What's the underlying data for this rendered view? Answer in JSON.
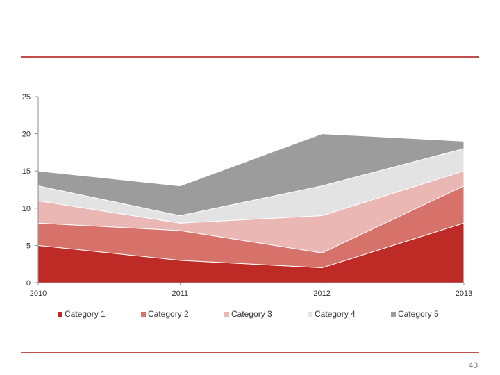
{
  "colors": {
    "rule": "#c0504d",
    "axis": "#8c8c8c",
    "series": [
      "#be2a26",
      "#d7726b",
      "#ebb7b5",
      "#e3e3e3",
      "#9c9c9c"
    ],
    "outline": "#ffffff"
  },
  "page_number": "40",
  "chart_data": {
    "type": "area",
    "stacked": true,
    "title": "",
    "xlabel": "",
    "ylabel": "",
    "x": [
      "2010",
      "2011",
      "2012",
      "2013"
    ],
    "ylim": [
      0,
      25
    ],
    "yticks": [
      "0",
      "5",
      "10",
      "15",
      "20",
      "25"
    ],
    "grid": false,
    "legend_position": "bottom",
    "series": [
      {
        "name": "Category 1",
        "values": [
          5,
          3,
          2,
          8
        ]
      },
      {
        "name": "Category 2",
        "values": [
          3,
          4,
          2,
          5
        ]
      },
      {
        "name": "Category 3",
        "values": [
          3,
          1,
          5,
          2
        ]
      },
      {
        "name": "Category 4",
        "values": [
          2,
          1,
          4,
          3
        ]
      },
      {
        "name": "Category 5",
        "values": [
          2,
          4,
          7,
          1
        ]
      }
    ]
  }
}
